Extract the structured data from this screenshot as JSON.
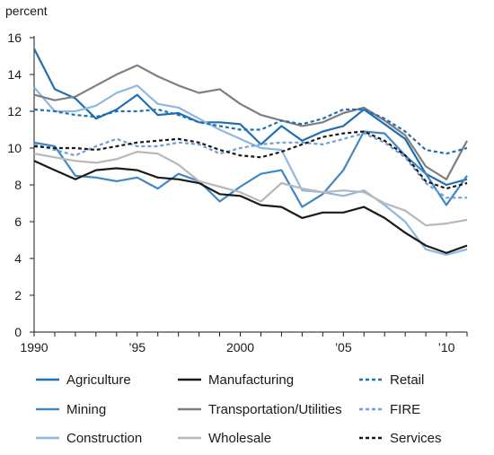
{
  "chart_data": {
    "type": "line",
    "title": "",
    "ylabel": "percent",
    "xlabel": "",
    "ylim": [
      0,
      16
    ],
    "xlim": [
      1990,
      2011
    ],
    "yticks": [
      0,
      2,
      4,
      6,
      8,
      10,
      12,
      14,
      16
    ],
    "xticks": [
      {
        "value": 1990,
        "label": "1990"
      },
      {
        "value": 1995,
        "label": "’95"
      },
      {
        "value": 2000,
        "label": "2000"
      },
      {
        "value": 2005,
        "label": "’05"
      },
      {
        "value": 2010,
        "label": "’10"
      }
    ],
    "grid": false,
    "legend_position": "bottom",
    "x": [
      1990,
      1991,
      1992,
      1993,
      1994,
      1995,
      1996,
      1997,
      1998,
      1999,
      2000,
      2001,
      2002,
      2003,
      2004,
      2005,
      2006,
      2007,
      2008,
      2009,
      2010,
      2011
    ],
    "series": [
      {
        "name": "Agriculture",
        "color": "#1f6fb2",
        "dash": "solid",
        "values": [
          15.4,
          13.2,
          12.7,
          11.6,
          12.1,
          12.9,
          11.8,
          11.9,
          11.4,
          11.4,
          11.3,
          10.2,
          11.2,
          10.4,
          10.9,
          11.2,
          12.1,
          11.3,
          10.5,
          8.6,
          8.0,
          8.3
        ]
      },
      {
        "name": "Mining",
        "color": "#3f88c5",
        "dash": "solid",
        "values": [
          10.3,
          10.1,
          8.5,
          8.4,
          8.2,
          8.4,
          7.8,
          8.6,
          8.2,
          7.1,
          7.9,
          8.6,
          8.8,
          6.8,
          7.5,
          8.8,
          10.9,
          10.8,
          9.6,
          8.6,
          6.9,
          8.5
        ]
      },
      {
        "name": "Construction",
        "color": "#8db8e0",
        "dash": "solid",
        "values": [
          13.3,
          12.0,
          12.0,
          12.3,
          13.0,
          13.4,
          12.4,
          12.2,
          11.6,
          11.0,
          10.5,
          10.0,
          9.9,
          7.7,
          7.6,
          7.4,
          7.7,
          6.9,
          6.0,
          4.5,
          4.2,
          4.5
        ]
      },
      {
        "name": "Manufacturing",
        "color": "#1a1a1a",
        "dash": "solid",
        "values": [
          9.3,
          8.8,
          8.3,
          8.8,
          8.9,
          8.8,
          8.4,
          8.3,
          8.1,
          7.5,
          7.4,
          6.9,
          6.8,
          6.2,
          6.5,
          6.5,
          6.8,
          6.2,
          5.4,
          4.7,
          4.3,
          4.7
        ]
      },
      {
        "name": "Transportation/Utilities",
        "color": "#7f7f7f",
        "dash": "solid",
        "values": [
          12.9,
          12.6,
          12.8,
          13.4,
          14.0,
          14.5,
          13.9,
          13.4,
          13.0,
          13.2,
          12.4,
          11.8,
          11.5,
          11.2,
          11.4,
          11.9,
          12.2,
          11.5,
          10.7,
          9.0,
          8.3,
          10.4
        ]
      },
      {
        "name": "Wholesale",
        "color": "#b8b8b8",
        "dash": "solid",
        "values": [
          9.7,
          9.5,
          9.3,
          9.2,
          9.4,
          9.8,
          9.7,
          9.1,
          8.2,
          7.9,
          7.6,
          7.1,
          8.1,
          7.8,
          7.6,
          7.7,
          7.6,
          7.0,
          6.6,
          5.8,
          5.9,
          6.1
        ]
      },
      {
        "name": "Retail",
        "color": "#1f6fb2",
        "dash": "dotted",
        "values": [
          12.1,
          12.0,
          11.8,
          11.7,
          12.0,
          12.0,
          12.1,
          11.8,
          11.4,
          11.2,
          11.0,
          11.0,
          11.5,
          11.3,
          11.6,
          12.1,
          12.1,
          11.6,
          10.9,
          9.9,
          9.7,
          10.0
        ]
      },
      {
        "name": "FIRE",
        "color": "#6f9fd6",
        "dash": "dotted",
        "values": [
          10.2,
          9.9,
          9.6,
          10.1,
          10.5,
          10.1,
          10.1,
          10.3,
          10.2,
          9.7,
          10.0,
          10.2,
          10.3,
          10.3,
          10.2,
          10.5,
          10.8,
          10.3,
          9.5,
          8.1,
          7.3,
          7.3
        ]
      },
      {
        "name": "Services",
        "color": "#1a1a1a",
        "dash": "dotted",
        "values": [
          10.1,
          10.0,
          10.0,
          9.9,
          10.1,
          10.3,
          10.4,
          10.5,
          10.3,
          9.9,
          9.6,
          9.5,
          9.8,
          10.2,
          10.6,
          10.8,
          10.9,
          10.4,
          9.6,
          8.2,
          7.8,
          8.1
        ]
      }
    ]
  }
}
